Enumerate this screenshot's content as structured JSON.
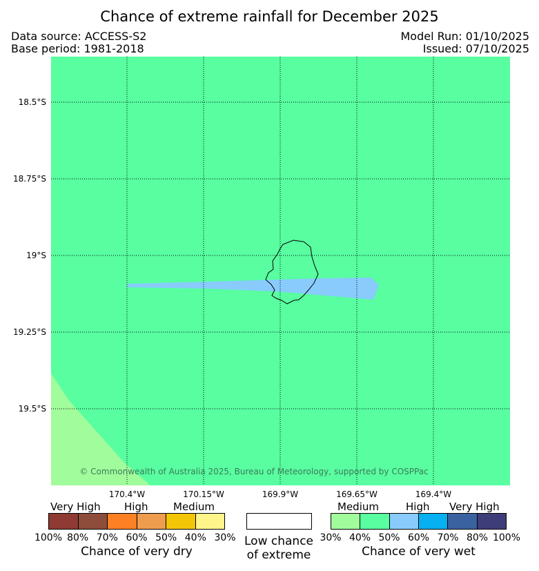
{
  "header": {
    "title": "Chance of extreme rainfall for December 2025",
    "data_source": "Data source: ACCESS-S2",
    "base_period": "Base period: 1981-2018",
    "model_run": "Model Run: 01/10/2025",
    "issued": "Issued: 07/10/2025"
  },
  "map": {
    "copyright": "© Commonwealth of Australia 2025, Bureau of Meteorology, supported by COSPPac",
    "lat_labels": [
      "18.5°S",
      "18.75°S",
      "19°S",
      "19.25°S",
      "19.5°S"
    ],
    "lon_labels": [
      "170.4°W",
      "170.15°W",
      "169.9°W",
      "169.65°W",
      "169.4°W"
    ],
    "colors": {
      "background_category": "#58fea0",
      "wet_high_band": "#88cbfc",
      "wet_medium_30_40": "#a1fc9b",
      "coastline": "#000000"
    }
  },
  "legend": {
    "dry": {
      "labels": {
        "very_high": "Very High",
        "high": "High",
        "medium": "Medium"
      },
      "colors": [
        "#8f3a33",
        "#8e4d3b",
        "#fe8025",
        "#ee9c4d",
        "#f2c606",
        "#fff58a"
      ],
      "ticks": [
        "100%",
        "80%",
        "70%",
        "60%",
        "50%",
        "40%",
        "30%"
      ],
      "caption": "Chance of very dry"
    },
    "low": {
      "line1": "Low chance",
      "line2": "of extreme"
    },
    "wet": {
      "labels": {
        "medium": "Medium",
        "high": "High",
        "very_high": "Very High"
      },
      "colors": [
        "#a1fc9b",
        "#58fea0",
        "#88cbfc",
        "#06b0f1",
        "#3a62a0",
        "#3f3d79"
      ],
      "ticks": [
        "30%",
        "40%",
        "50%",
        "60%",
        "70%",
        "80%",
        "100%"
      ],
      "caption": "Chance of very wet"
    }
  }
}
